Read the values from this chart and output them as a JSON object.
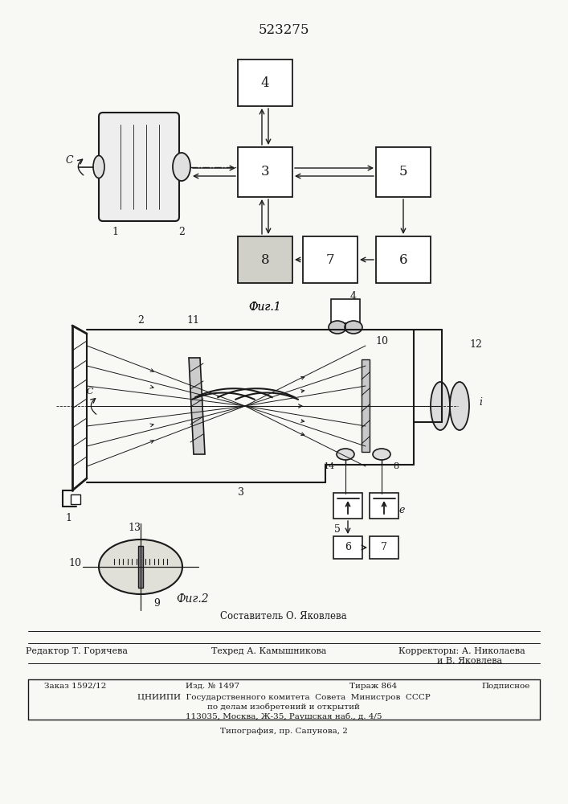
{
  "patent_number": "523275",
  "fig1_caption": "Фиг.1",
  "fig2_caption": "Фиг.2",
  "footer_composer": "Составитель О. Яковлева",
  "footer_editor": "Редактор Т. Горячева",
  "footer_techred": "Техред А. Камышникова",
  "footer_corr1": "Корректоры: А. Николаева",
  "footer_corr2": "и В. Яковлева",
  "footer_order": "Заказ 1592/12",
  "footer_izd": "Изд. № 1497",
  "footer_tirazh": "Тираж 864",
  "footer_podpisnoe": "Подписное",
  "footer_org1": "ЦНИИПИ  Государственного комитета  Совета  Министров  СССР",
  "footer_org2": "по делам изобретений и открытий",
  "footer_org3": "113035, Москва, Ж-35, Раушская наб., д. 4/5",
  "footer_tipografia": "Типография, пр. Сапунова, 2",
  "bg_color": "#f8f8f5",
  "line_color": "#1a1a1a"
}
